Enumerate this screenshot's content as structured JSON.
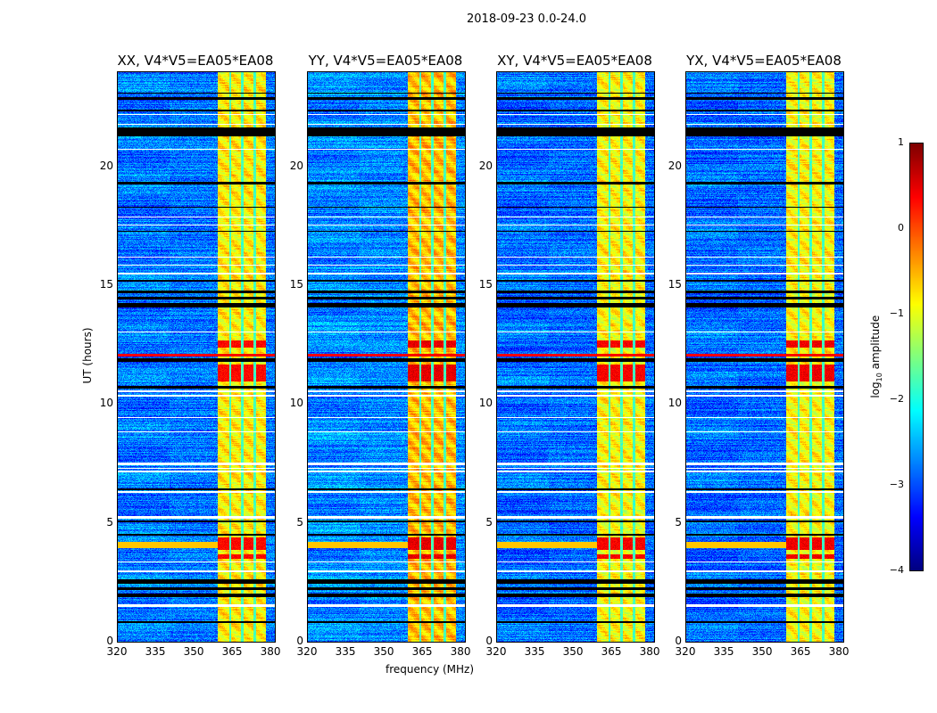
{
  "chart_data": {
    "type": "heatmap",
    "title": "2018-09-23 0.0-24.0",
    "xlabel": "frequency (MHz)",
    "ylabel": "UT (hours)",
    "xlim": [
      320,
      381.7
    ],
    "ylim": [
      0,
      24
    ],
    "xticks": [
      "320",
      "335",
      "350",
      "365",
      "380"
    ],
    "yticks": [
      "0",
      "5",
      "10",
      "15",
      "20"
    ],
    "xtick_values": [
      320,
      335,
      350,
      365,
      380
    ],
    "ytick_values": [
      0,
      5,
      10,
      15,
      20
    ],
    "colorbar": {
      "label": "log10 amplitude",
      "label_main": "log",
      "label_sub": "10",
      "label_rest": " amplitude",
      "colormap": "jet",
      "range": [
        -4,
        1
      ],
      "ticks": [
        "1",
        "0",
        "−1",
        "−2",
        "−3",
        "−4"
      ],
      "tick_values": [
        1,
        0,
        -1,
        -2,
        -3,
        -4
      ]
    },
    "panels": [
      {
        "title": "XX, V4*V5=EA05*EA08",
        "background_level": -2.8,
        "band_level": -0.8,
        "hot_level": 0.35
      },
      {
        "title": "YY, V4*V5=EA05*EA08",
        "background_level": -2.7,
        "band_level": -0.55,
        "hot_level": 0.5
      },
      {
        "title": "XY, V4*V5=EA05*EA08",
        "background_level": -2.85,
        "band_level": -0.85,
        "hot_level": 0.4
      },
      {
        "title": "YX, V4*V5=EA05*EA08",
        "background_level": -2.85,
        "band_level": -0.85,
        "hot_level": 0.45
      }
    ],
    "rfi_band_mhz": [
      359,
      378
    ],
    "subband_gaps_mhz": [
      364,
      368.6,
      373.5
    ],
    "flagged_black_ut": [
      [
        0.8,
        0.9
      ],
      [
        1.9,
        2.05
      ],
      [
        2.2,
        2.3
      ],
      [
        2.45,
        2.65
      ],
      [
        4.5,
        4.58
      ],
      [
        5.05,
        5.12
      ],
      [
        6.4,
        6.47
      ],
      [
        10.7,
        10.78
      ],
      [
        11.8,
        11.95
      ],
      [
        14.1,
        14.3
      ],
      [
        14.45,
        14.55
      ],
      [
        14.7,
        14.8
      ],
      [
        15.2,
        15.25
      ],
      [
        17.3,
        17.35
      ],
      [
        18.3,
        18.35
      ],
      [
        19.3,
        19.4
      ],
      [
        21.3,
        21.7
      ],
      [
        22.35,
        22.45
      ],
      [
        22.85,
        22.95
      ],
      [
        23.1,
        23.15
      ]
    ],
    "flagged_white_ut": [
      [
        1.5,
        1.58
      ],
      [
        2.95,
        3.02
      ],
      [
        3.35,
        3.4
      ],
      [
        5.22,
        5.3
      ],
      [
        6.3,
        6.36
      ],
      [
        7.15,
        7.22
      ],
      [
        7.3,
        7.36
      ],
      [
        7.45,
        7.55
      ],
      [
        8.85,
        8.9
      ],
      [
        9.45,
        9.5
      ],
      [
        10.35,
        10.42
      ],
      [
        10.55,
        10.6
      ],
      [
        13.05,
        13.1
      ],
      [
        15.5,
        15.55
      ],
      [
        15.85,
        15.9
      ],
      [
        16.2,
        16.25
      ],
      [
        17.55,
        17.6
      ],
      [
        17.9,
        17.95
      ],
      [
        20.75,
        20.8
      ],
      [
        21.8,
        21.85
      ],
      [
        22.2,
        22.25
      ]
    ],
    "hot_intervals_ut": [
      [
        3.5,
        3.7
      ],
      [
        3.9,
        4.4
      ],
      [
        11.0,
        11.7
      ],
      [
        12.4,
        12.7
      ]
    ],
    "broadband_rfi_ut": [
      12.05,
      12.15
    ]
  }
}
